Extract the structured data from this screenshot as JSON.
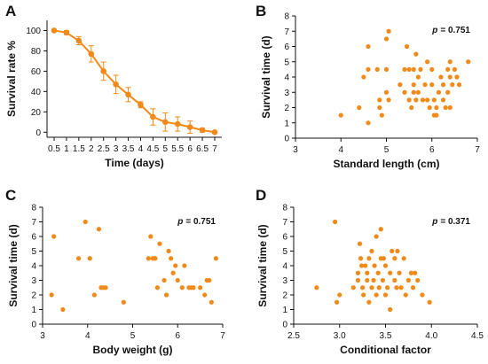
{
  "figure": {
    "accent_color": "#f28a1a"
  },
  "chart_data": [
    {
      "id": "A",
      "panel_label": "A",
      "type": "line",
      "xlabel": "Time (days)",
      "ylabel": "Survival rate %",
      "xticks": [
        "0.5",
        "1",
        "1.5",
        "2",
        "2.5",
        "3",
        "3.5",
        "4",
        "4.5",
        "5",
        "5.5",
        "6",
        "6.5",
        "7"
      ],
      "yticks": [
        "0",
        "20",
        "40",
        "60",
        "80",
        "100"
      ],
      "ylim": [
        -5,
        110
      ],
      "series": [
        {
          "x": [
            0.5,
            1,
            1.5,
            2,
            2.5,
            3,
            3.5,
            4,
            4.5,
            5,
            5.5,
            6,
            6.5,
            7
          ],
          "values": [
            100,
            98,
            90,
            77,
            60,
            47,
            37,
            27,
            15,
            10,
            8,
            5,
            2,
            0
          ],
          "error": [
            0,
            2,
            4,
            8,
            9,
            9,
            7,
            3,
            8,
            9,
            7,
            6,
            2,
            1
          ]
        }
      ]
    },
    {
      "id": "B",
      "panel_label": "B",
      "type": "scatter",
      "xlabel": "Standard length (cm)",
      "ylabel": "Survival time (d)",
      "xlim": [
        3,
        7
      ],
      "ylim": [
        0,
        8
      ],
      "xticks": [
        "3",
        "4",
        "5",
        "6",
        "7"
      ],
      "yticks": [
        "0",
        "1",
        "2",
        "3",
        "4",
        "5",
        "6",
        "7",
        "8"
      ],
      "annotation": {
        "p_label": "p",
        "p_value": "= 0.751"
      },
      "points": [
        [
          4.0,
          1.5
        ],
        [
          4.4,
          2.0
        ],
        [
          4.5,
          4.0
        ],
        [
          4.6,
          6.0
        ],
        [
          4.6,
          4.5
        ],
        [
          4.6,
          1.0
        ],
        [
          4.8,
          4.5
        ],
        [
          4.85,
          2.5
        ],
        [
          4.85,
          2.0
        ],
        [
          4.9,
          1.5
        ],
        [
          5.0,
          6.5
        ],
        [
          5.05,
          7.0
        ],
        [
          5.0,
          4.5
        ],
        [
          5.0,
          3.0
        ],
        [
          5.05,
          2.5
        ],
        [
          5.3,
          3.5
        ],
        [
          5.4,
          3.0
        ],
        [
          5.4,
          4.5
        ],
        [
          5.45,
          6.0
        ],
        [
          5.5,
          4.5
        ],
        [
          5.5,
          2.5
        ],
        [
          5.55,
          2.0
        ],
        [
          5.6,
          4.5
        ],
        [
          5.6,
          3.5
        ],
        [
          5.6,
          3.0
        ],
        [
          5.65,
          5.5
        ],
        [
          5.65,
          2.5
        ],
        [
          5.7,
          4.0
        ],
        [
          5.7,
          3.0
        ],
        [
          5.75,
          4.5
        ],
        [
          5.8,
          2.5
        ],
        [
          5.85,
          3.5
        ],
        [
          5.9,
          5.0
        ],
        [
          5.9,
          2.5
        ],
        [
          5.95,
          2.0
        ],
        [
          6.0,
          4.5
        ],
        [
          6.0,
          3.5
        ],
        [
          6.05,
          1.5
        ],
        [
          6.05,
          2.5
        ],
        [
          6.1,
          2.0
        ],
        [
          6.1,
          1.5
        ],
        [
          6.15,
          3.0
        ],
        [
          6.2,
          4.0
        ],
        [
          6.25,
          3.5
        ],
        [
          6.25,
          2.5
        ],
        [
          6.3,
          2.0
        ],
        [
          6.35,
          4.5
        ],
        [
          6.35,
          3.0
        ],
        [
          6.4,
          5.0
        ],
        [
          6.4,
          4.0
        ],
        [
          6.4,
          2.0
        ],
        [
          6.45,
          3.5
        ],
        [
          6.5,
          4.5
        ],
        [
          6.55,
          4.0
        ],
        [
          6.6,
          3.5
        ],
        [
          6.8,
          5.0
        ]
      ]
    },
    {
      "id": "C",
      "panel_label": "C",
      "type": "scatter",
      "xlabel": "Body weight (g)",
      "ylabel": "Survival time (d)",
      "xlim": [
        3,
        7
      ],
      "ylim": [
        0,
        8
      ],
      "xticks": [
        "3",
        "4",
        "5",
        "6",
        "7"
      ],
      "yticks": [
        "0",
        "1",
        "2",
        "3",
        "4",
        "5",
        "6",
        "7",
        "8"
      ],
      "annotation": {
        "p_label": "p",
        "p_value": "= 0.751"
      },
      "points": [
        [
          3.2,
          2.0
        ],
        [
          3.25,
          6.0
        ],
        [
          3.45,
          1.0
        ],
        [
          3.8,
          4.5
        ],
        [
          3.95,
          7.0
        ],
        [
          4.05,
          4.5
        ],
        [
          4.15,
          2.0
        ],
        [
          4.25,
          6.5
        ],
        [
          4.3,
          2.5
        ],
        [
          4.35,
          2.5
        ],
        [
          4.4,
          2.5
        ],
        [
          4.8,
          1.5
        ],
        [
          5.35,
          4.5
        ],
        [
          5.4,
          6.0
        ],
        [
          5.45,
          4.5
        ],
        [
          5.5,
          4.5
        ],
        [
          5.55,
          2.5
        ],
        [
          5.6,
          5.5
        ],
        [
          5.7,
          3.0
        ],
        [
          5.75,
          2.0
        ],
        [
          5.8,
          5.0
        ],
        [
          5.85,
          4.5
        ],
        [
          5.9,
          3.5
        ],
        [
          5.95,
          4.0
        ],
        [
          6.0,
          3.0
        ],
        [
          6.1,
          2.5
        ],
        [
          6.15,
          4.0
        ],
        [
          6.25,
          2.5
        ],
        [
          6.3,
          2.5
        ],
        [
          6.35,
          2.5
        ],
        [
          6.5,
          2.5
        ],
        [
          6.6,
          2.0
        ],
        [
          6.65,
          3.0
        ],
        [
          6.7,
          3.0
        ],
        [
          6.75,
          1.5
        ],
        [
          6.85,
          4.5
        ]
      ]
    },
    {
      "id": "D",
      "panel_label": "D",
      "type": "scatter",
      "xlabel": "Conditional factor",
      "ylabel": "Survival time (d)",
      "xlim": [
        2.5,
        4.5
      ],
      "ylim": [
        0,
        8
      ],
      "xticks": [
        "2.5",
        "3.0",
        "3.5",
        "4.0",
        "4.5"
      ],
      "yticks": [
        "0",
        "1",
        "2",
        "3",
        "4",
        "5",
        "6",
        "7",
        "8"
      ],
      "annotation": {
        "p_label": "p",
        "p_value": "= 0.371"
      },
      "points": [
        [
          2.75,
          2.5
        ],
        [
          2.95,
          7.0
        ],
        [
          2.97,
          1.5
        ],
        [
          3.0,
          2.0
        ],
        [
          3.15,
          2.5
        ],
        [
          3.2,
          3.5
        ],
        [
          3.2,
          3.0
        ],
        [
          3.22,
          5.5
        ],
        [
          3.23,
          4.5
        ],
        [
          3.24,
          4.0
        ],
        [
          3.25,
          2.5
        ],
        [
          3.26,
          2.0
        ],
        [
          3.28,
          4.0
        ],
        [
          3.3,
          3.0
        ],
        [
          3.3,
          3.5
        ],
        [
          3.32,
          4.5
        ],
        [
          3.32,
          1.5
        ],
        [
          3.35,
          2.5
        ],
        [
          3.35,
          5.0
        ],
        [
          3.37,
          3.0
        ],
        [
          3.38,
          4.0
        ],
        [
          3.4,
          2.0
        ],
        [
          3.4,
          6.0
        ],
        [
          3.42,
          3.5
        ],
        [
          3.43,
          2.5
        ],
        [
          3.45,
          6.5
        ],
        [
          3.45,
          4.5
        ],
        [
          3.47,
          3.0
        ],
        [
          3.48,
          4.5
        ],
        [
          3.5,
          2.0
        ],
        [
          3.5,
          4.0
        ],
        [
          3.52,
          2.5
        ],
        [
          3.55,
          3.5
        ],
        [
          3.55,
          1.0
        ],
        [
          3.57,
          5.0
        ],
        [
          3.6,
          3.0
        ],
        [
          3.6,
          4.5
        ],
        [
          3.62,
          2.5
        ],
        [
          3.63,
          5.0
        ],
        [
          3.65,
          3.5
        ],
        [
          3.67,
          2.5
        ],
        [
          3.7,
          4.5
        ],
        [
          3.72,
          2.0
        ],
        [
          3.75,
          3.0
        ],
        [
          3.78,
          3.5
        ],
        [
          3.8,
          2.5
        ],
        [
          3.82,
          3.5
        ],
        [
          3.85,
          3.0
        ],
        [
          3.9,
          2.0
        ],
        [
          3.98,
          1.5
        ]
      ]
    }
  ]
}
